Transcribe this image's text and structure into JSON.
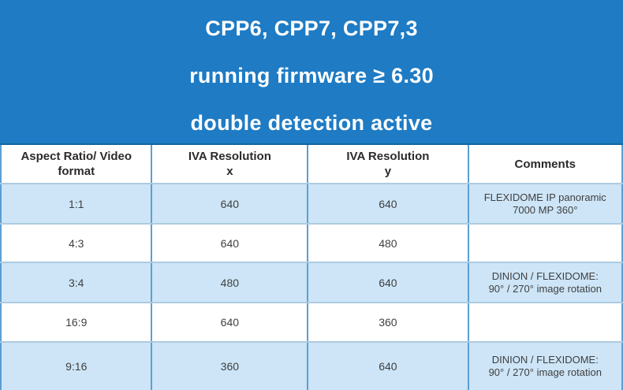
{
  "banner": {
    "lines": [
      "CPP6, CPP7, CPP7,3",
      "running firmware ≥ 6.30",
      "double detection active"
    ]
  },
  "table": {
    "columns": [
      "Aspect Ratio/ Video\nformat",
      "IVA Resolution\nx",
      "IVA Resolution\ny",
      "Comments"
    ],
    "rows": [
      {
        "aspect_ratio": "1:1",
        "iva_x": "640",
        "iva_y": "640",
        "comments": "FLEXIDOME IP panoramic\n7000 MP 360°",
        "highlighted": true
      },
      {
        "aspect_ratio": "4:3",
        "iva_x": "640",
        "iva_y": "480",
        "comments": "",
        "highlighted": false
      },
      {
        "aspect_ratio": "3:4",
        "iva_x": "480",
        "iva_y": "640",
        "comments": "DINION / FLEXIDOME:\n90° / 270° image rotation",
        "highlighted": true
      },
      {
        "aspect_ratio": "16:9",
        "iva_x": "640",
        "iva_y": "360",
        "comments": "",
        "highlighted": false
      },
      {
        "aspect_ratio": "9:16",
        "iva_x": "360",
        "iva_y": "640",
        "comments": "DINION / FLEXIDOME:\n90° / 270° image rotation",
        "highlighted": true
      }
    ]
  },
  "colors": {
    "banner_bg": "#1e7bc4",
    "row_highlight": "#cde5f7",
    "column_divider": "#5b9fd4",
    "row_divider": "#adcbe0",
    "table_top_edge": "#15659f",
    "header_text": "#2b2b2b",
    "cell_text": "#3f3f3f"
  }
}
